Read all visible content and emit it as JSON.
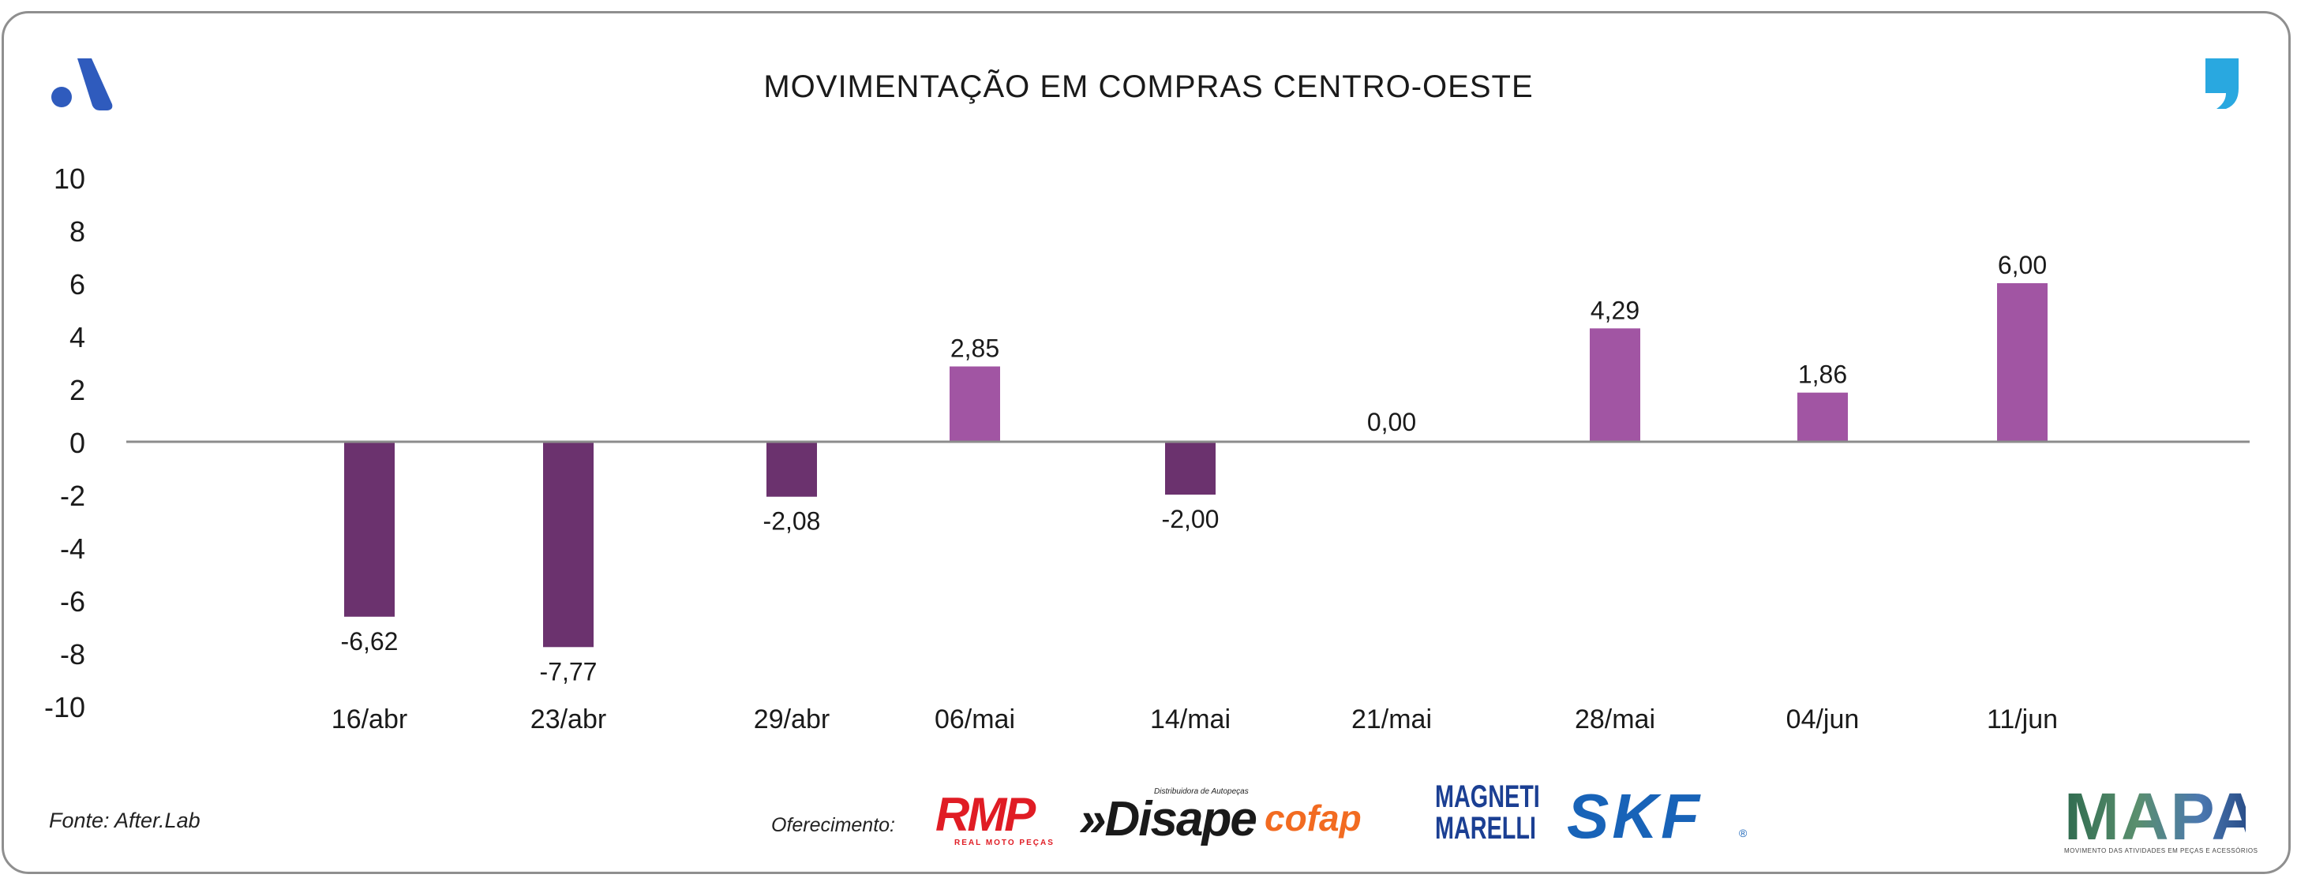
{
  "chart_data": {
    "type": "bar",
    "title": "MOVIMENTAÇÃO EM COMPRAS CENTRO-OESTE",
    "categories": [
      "16/abr",
      "23/abr",
      "29/abr",
      "06/mai",
      "14/mai",
      "21/mai",
      "28/mai",
      "04/jun",
      "11/jun"
    ],
    "values": [
      -6.62,
      -7.77,
      -2.08,
      2.85,
      -2.0,
      0.0,
      4.29,
      1.86,
      6.0
    ],
    "value_labels": [
      "-6,62",
      "-7,77",
      "-2,08",
      "2,85",
      "-2,00",
      "0,00",
      "4,29",
      "1,86",
      "6,00"
    ],
    "yticks": [
      10,
      8,
      6,
      4,
      2,
      0,
      -2,
      -4,
      -6,
      -8,
      -10
    ],
    "ylim": [
      -10,
      10
    ],
    "xlabel": "",
    "ylabel": "",
    "grid": false,
    "colors": {
      "positive": "#a155a3",
      "negative": "#6b326e",
      "axis": "#8c8c8c"
    }
  },
  "footer": {
    "source": "Fonte: After.Lab",
    "sponsor_label": "Oferecimento:"
  },
  "sponsors": {
    "rmp": {
      "name": "RMP",
      "sub": "REAL MOTO PEÇAS"
    },
    "disape": {
      "name": "»Disape",
      "sub": "Distribuidora de Autopeças"
    },
    "cofap": {
      "name": "cofap"
    },
    "magneti": {
      "line1": "MAGNETI",
      "line2": "MARELLI"
    },
    "skf": {
      "name": "SKF",
      "reg": "®"
    },
    "mapa": {
      "name": "MAPA",
      "sub": "MOVIMENTO DAS ATIVIDADES EM PEÇAS E ACESSÓRIOS"
    }
  },
  "logos": {
    "left_brand_color": "#2f5bbd",
    "right_brand_color": "#29a8e0"
  }
}
